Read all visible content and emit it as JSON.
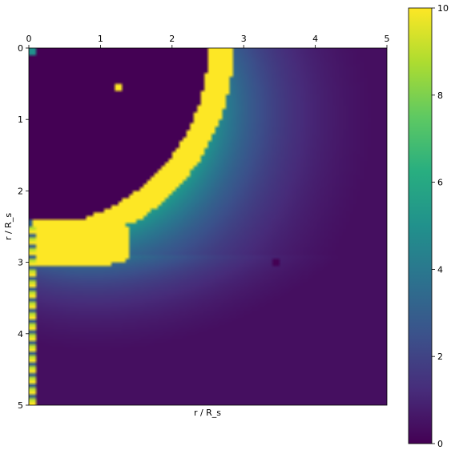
{
  "chart_data": {
    "type": "heatmap",
    "xlabel": "r / R_s",
    "ylabel": "r / R_s",
    "xlim": [
      0,
      5
    ],
    "ylim": [
      0,
      5
    ],
    "x_axis_position": "top",
    "y_axis_direction": "inverted",
    "x_ticks": [
      "0",
      "1",
      "2",
      "3",
      "4",
      "5"
    ],
    "y_ticks": [
      "0",
      "1",
      "2",
      "3",
      "4",
      "5"
    ],
    "grid_resolution": [
      100,
      100
    ],
    "colormap": "viridis",
    "colorbar": {
      "range": [
        0,
        10
      ],
      "position": "right",
      "ticks": [
        "0",
        "2",
        "4",
        "6",
        "8",
        "10"
      ]
    },
    "features": [
      {
        "kind": "saturated-ring",
        "value": 10,
        "r_inner": 2.5,
        "r_outer": 2.85,
        "description_values": "arc from about (2.7, 0) to (0, 2.4)"
      },
      {
        "kind": "saturated-lobe",
        "value": 10,
        "extent_x": [
          0.05,
          1.4
        ],
        "extent_y": [
          2.4,
          3.05
        ]
      },
      {
        "kind": "diffuse-halo",
        "peak_value": 5.5,
        "decays_toward": 0
      },
      {
        "kind": "noisy-column",
        "x": 0.06,
        "y_range": [
          2.5,
          5.0
        ],
        "values": "alternating 1 to 10"
      },
      {
        "kind": "isolated-pixel",
        "x": 1.27,
        "y": 0.55,
        "value": 10
      },
      {
        "kind": "isolated-pixel",
        "x": 0.07,
        "y": 0.05,
        "value": 5
      },
      {
        "kind": "isolated-pixel",
        "x": 3.47,
        "y": 3.02,
        "value": 0
      }
    ]
  }
}
